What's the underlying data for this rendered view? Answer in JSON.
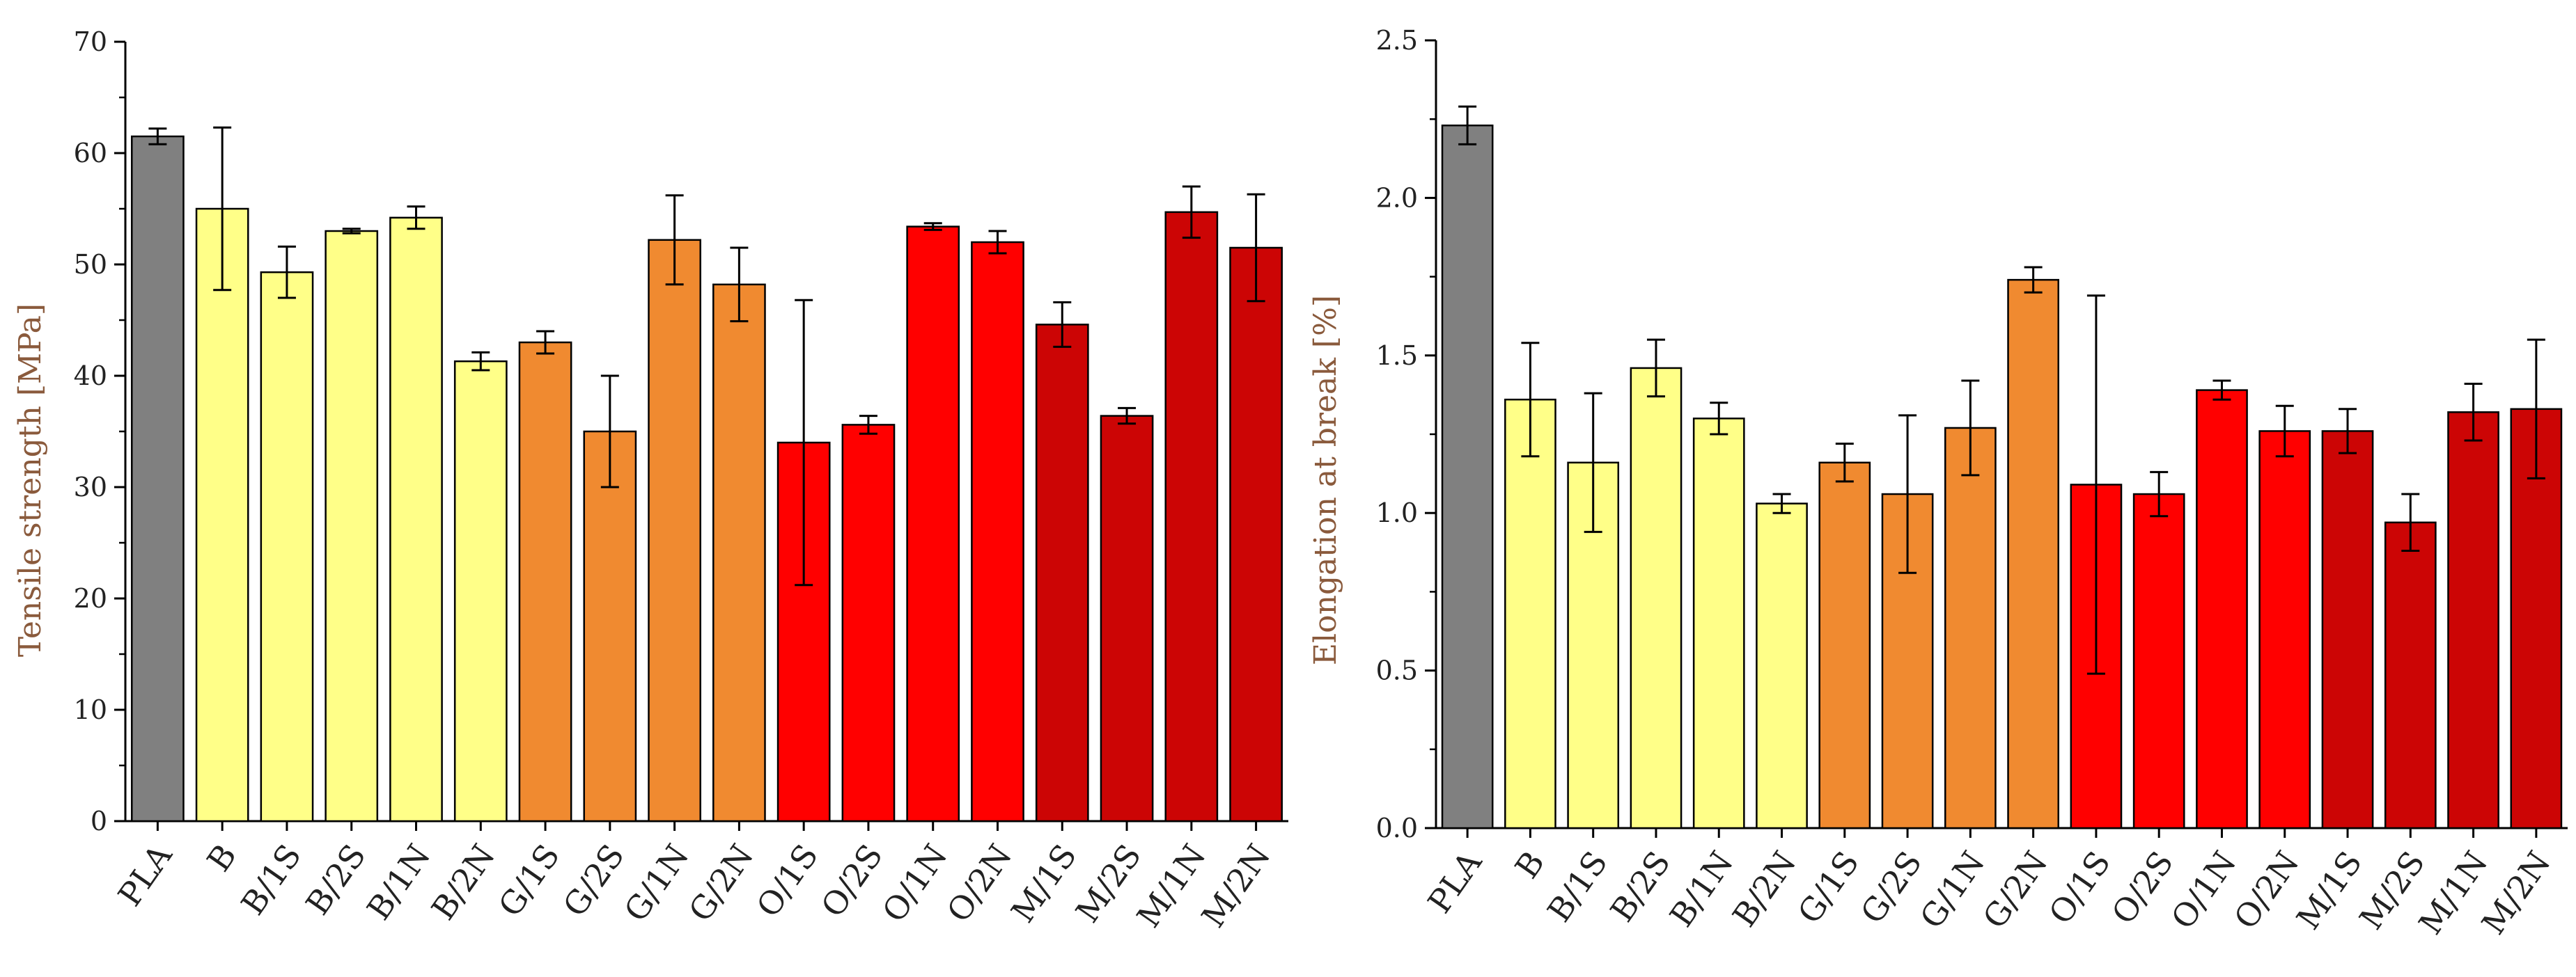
{
  "chart_data": [
    {
      "type": "bar",
      "title": "",
      "xlabel": "",
      "ylabel": "Tensile strength [MPa]",
      "ylim": [
        0,
        70
      ],
      "yticks": [
        "0",
        "10",
        "20",
        "30",
        "40",
        "50",
        "60",
        "70"
      ],
      "grid": false,
      "categories": [
        "PLA",
        "B",
        "B/1S",
        "B/2S",
        "B/1N",
        "B/2N",
        "G/1S",
        "G/2S",
        "G/1N",
        "G/2N",
        "O/1S",
        "O/2S",
        "O/1N",
        "O/2N",
        "M/1S",
        "M/2S",
        "M/1N",
        "M/2N"
      ],
      "values": [
        61.5,
        55.0,
        49.3,
        53.0,
        54.2,
        41.3,
        43.0,
        35.0,
        52.2,
        48.2,
        34.0,
        35.6,
        53.4,
        52.0,
        44.6,
        36.4,
        54.7,
        51.5
      ],
      "errors": [
        0.7,
        7.3,
        2.3,
        0.2,
        1.0,
        0.8,
        1.0,
        5.0,
        4.0,
        3.3,
        12.8,
        0.8,
        0.3,
        1.0,
        2.0,
        0.7,
        2.3,
        4.8
      ],
      "colors": [
        "#808080",
        "#ffff88",
        "#ffff88",
        "#ffff88",
        "#ffff88",
        "#ffff88",
        "#f08a30",
        "#f08a30",
        "#f08a30",
        "#f08a30",
        "#ff0000",
        "#ff0000",
        "#ff0000",
        "#ff0000",
        "#cc0505",
        "#cc0505",
        "#cc0505",
        "#cc0505"
      ]
    },
    {
      "type": "bar",
      "title": "",
      "xlabel": "",
      "ylabel": "Elongation at break [%]",
      "ylim": [
        0,
        2.5
      ],
      "yticks": [
        "0.0",
        "0.5",
        "1.0",
        "1.5",
        "2.0",
        "2.5"
      ],
      "grid": false,
      "categories": [
        "PLA",
        "B",
        "B/1S",
        "B/2S",
        "B/1N",
        "B/2N",
        "G/1S",
        "G/2S",
        "G/1N",
        "G/2N",
        "O/1S",
        "O/2S",
        "O/1N",
        "O/2N",
        "M/1S",
        "M/2S",
        "M/1N",
        "M/2N"
      ],
      "values": [
        2.23,
        1.36,
        1.16,
        1.46,
        1.3,
        1.03,
        1.16,
        1.06,
        1.27,
        1.74,
        1.09,
        1.06,
        1.39,
        1.26,
        1.26,
        0.97,
        1.32,
        1.33
      ],
      "errors": [
        0.06,
        0.18,
        0.22,
        0.09,
        0.05,
        0.03,
        0.06,
        0.25,
        0.15,
        0.04,
        0.6,
        0.07,
        0.03,
        0.08,
        0.07,
        0.09,
        0.09,
        0.22
      ],
      "colors": [
        "#808080",
        "#ffff88",
        "#ffff88",
        "#ffff88",
        "#ffff88",
        "#ffff88",
        "#f08a30",
        "#f08a30",
        "#f08a30",
        "#f08a30",
        "#ff0000",
        "#ff0000",
        "#ff0000",
        "#ff0000",
        "#cc0505",
        "#cc0505",
        "#cc0505",
        "#cc0505"
      ]
    }
  ]
}
